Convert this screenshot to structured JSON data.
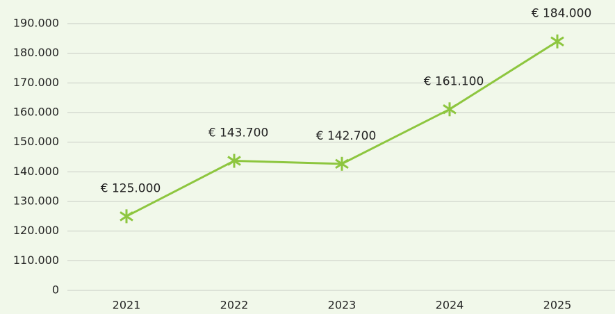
{
  "chart_data": {
    "type": "line",
    "categories": [
      "2021",
      "2022",
      "2023",
      "2024",
      "2025"
    ],
    "series": [
      {
        "color": "#8dc63f",
        "values": [
          125000,
          143700,
          142700,
          161100,
          184000
        ],
        "value_labels": [
          "€ 125.000",
          "€ 143.700",
          "€ 142.700",
          "€ 161.100",
          "€ 184.000"
        ]
      }
    ],
    "ylim": [
      0,
      190000
    ],
    "yticks": [
      0,
      {
        "value": 110000,
        "label": "110.000"
      },
      {
        "value": 120000,
        "label": "120.000"
      },
      {
        "value": 130000,
        "label": "130.000"
      },
      {
        "value": 140000,
        "label": "140.000"
      },
      {
        "value": 150000,
        "label": "150.000"
      },
      {
        "value": 160000,
        "label": "160.000"
      },
      {
        "value": 170000,
        "label": "170.000"
      },
      {
        "value": 180000,
        "label": "180.000"
      },
      {
        "value": 190000,
        "label": "190.000"
      }
    ],
    "grid": true
  }
}
